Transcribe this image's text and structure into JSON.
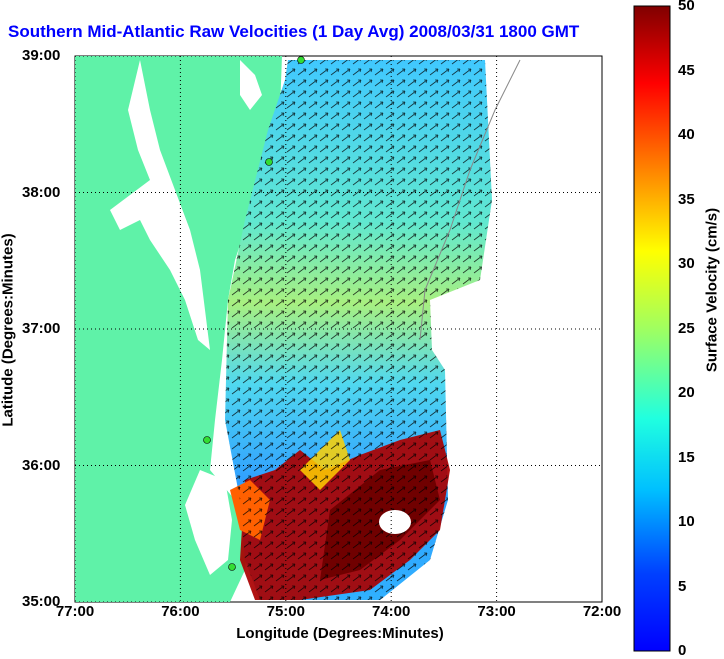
{
  "title": "Southern Mid-Atlantic Raw Velocities (1 Day Avg) 2008/03/31 1800 GMT",
  "map": {
    "xlabel": "Longitude (Degrees:Minutes)",
    "ylabel": "Latitude (Degrees:Minutes)",
    "x_ticks": [
      {
        "value": -77,
        "label": "77:00"
      },
      {
        "value": -76,
        "label": "76:00"
      },
      {
        "value": -75,
        "label": "75:00"
      },
      {
        "value": -74,
        "label": "74:00"
      },
      {
        "value": -73,
        "label": "73:00"
      },
      {
        "value": -72,
        "label": "72:00"
      }
    ],
    "y_ticks": [
      {
        "value": 39,
        "label": "39:00"
      },
      {
        "value": 38,
        "label": "38:00"
      },
      {
        "value": 37,
        "label": "37:00"
      },
      {
        "value": 36,
        "label": "36:00"
      },
      {
        "value": 35,
        "label": "35:00"
      }
    ],
    "xlim": [
      -77,
      -72
    ],
    "ylim": [
      35,
      39
    ],
    "grid": "dotted",
    "colors": {
      "land": "#5ff2a8",
      "water_inland": "#ffffff",
      "station": "#33dd33"
    }
  },
  "colorbar": {
    "label": "Surface Velocity (cm/s)",
    "ticks": [
      0,
      5,
      10,
      15,
      20,
      25,
      30,
      35,
      40,
      45,
      50
    ],
    "range": [
      0,
      50
    ],
    "colormap": "jet"
  }
}
